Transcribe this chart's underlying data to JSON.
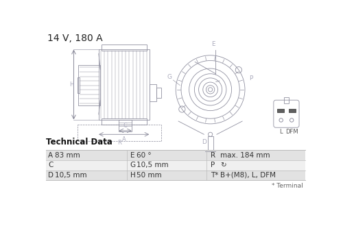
{
  "title": "14 V, 180 A",
  "title_fontsize": 10,
  "bg_color": "#ffffff",
  "table_header": "Technical Data",
  "table_bg_row1": "#e2e2e2",
  "table_bg_row2": "#f0f0f0",
  "table_border_color": "#bbbbbb",
  "table_data": [
    [
      "A",
      "83 mm",
      "E",
      "60 °",
      "R",
      "max. 184 mm"
    ],
    [
      "C",
      "",
      "G",
      "10,5 mm",
      "P",
      "↻"
    ],
    [
      "D",
      "10,5 mm",
      "H",
      "50 mm",
      "T*",
      "B+(M8), L, DFM"
    ]
  ],
  "footnote": "* Terminal",
  "dc": "#9090a0",
  "lc": "#aaaabc",
  "dim_color": "#888898"
}
